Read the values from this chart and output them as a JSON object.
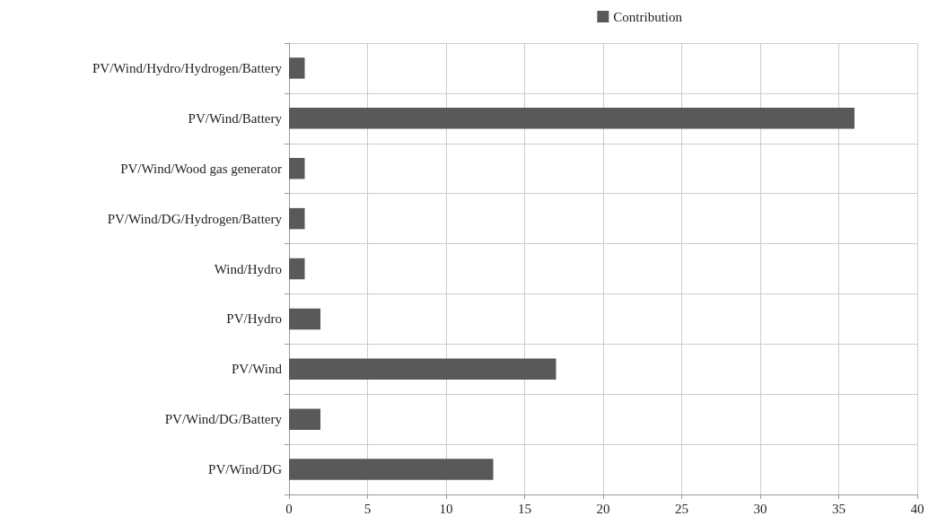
{
  "chart_data": {
    "type": "bar",
    "orientation": "horizontal",
    "categories": [
      "PV/Wind/Hydro/Hydrogen/Battery",
      "PV/Wind/Battery",
      "PV/Wind/Wood gas generator",
      "PV/Wind/DG/Hydrogen/Battery",
      "Wind/Hydro",
      "PV/Hydro",
      "PV/Wind",
      "PV/Wind/DG/Battery",
      "PV/Wind/DG"
    ],
    "series": [
      {
        "name": "Contribution",
        "color": "#595959",
        "values": [
          1,
          36,
          1,
          1,
          1,
          2,
          17,
          2,
          13
        ]
      }
    ],
    "xlim": [
      0,
      40
    ],
    "xticks": [
      0,
      5,
      10,
      15,
      20,
      25,
      30,
      35,
      40
    ],
    "grid": true,
    "legend": "top right"
  }
}
